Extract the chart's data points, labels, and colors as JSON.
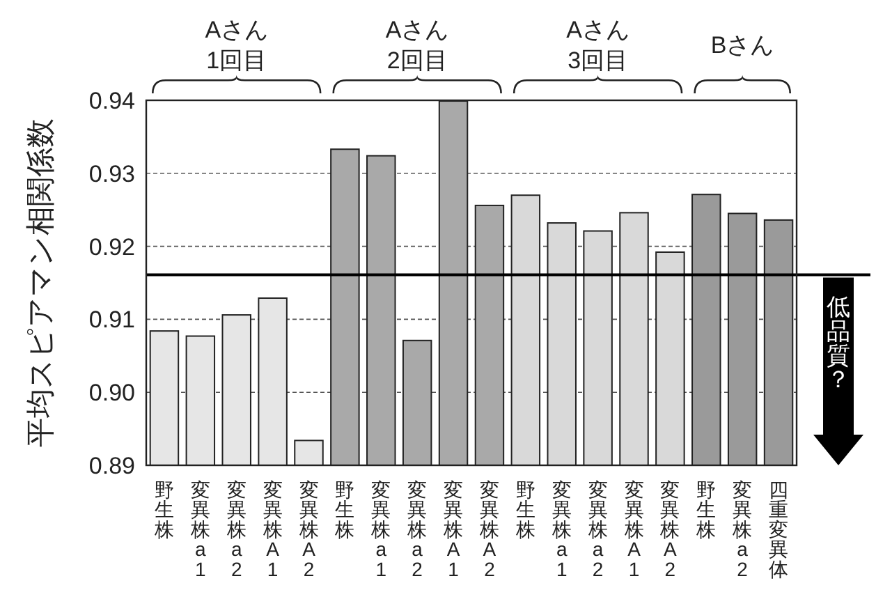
{
  "chart_data": {
    "type": "bar",
    "ylabel": "平均スピアマン相関係数",
    "categories": [
      "野生株",
      "変異株a1",
      "変異株a2",
      "変異株A1",
      "変異株A2",
      "野生株",
      "変異株a1",
      "変異株a2",
      "変異株A1",
      "変異株A2",
      "野生株",
      "変異株a1",
      "変異株a2",
      "変異株A1",
      "変異株A2",
      "野生株",
      "変異株a2",
      "四重変異体"
    ],
    "values": [
      0.9084,
      0.9077,
      0.9106,
      0.9129,
      0.8934,
      0.9333,
      0.9324,
      0.9071,
      0.9399,
      0.9256,
      0.927,
      0.9232,
      0.9221,
      0.9246,
      0.9192,
      0.9271,
      0.9245,
      0.9236
    ],
    "colors": [
      "#e6e6e6",
      "#e6e6e6",
      "#e6e6e6",
      "#e6e6e6",
      "#e6e6e6",
      "#a9a9a9",
      "#a9a9a9",
      "#a9a9a9",
      "#a9a9a9",
      "#a9a9a9",
      "#d9d9d9",
      "#d9d9d9",
      "#d9d9d9",
      "#d9d9d9",
      "#d9d9d9",
      "#9a9a9a",
      "#9a9a9a",
      "#9a9a9a"
    ],
    "ylim": [
      0.89,
      0.94
    ],
    "yticks": [
      0.89,
      {
        "value": 0.9,
        "label": "0.90"
      },
      0.91,
      0.92,
      0.93,
      0.94
    ],
    "annotations": [
      "Aさん\n1回目",
      "Aさん\n2回目",
      "Aさん\n3回目",
      "Bさん"
    ],
    "ref_lines": [
      {
        "axis": "y",
        "value": 0.9161,
        "label": "低品質？",
        "color": "#000000"
      }
    ],
    "grid": "y"
  }
}
